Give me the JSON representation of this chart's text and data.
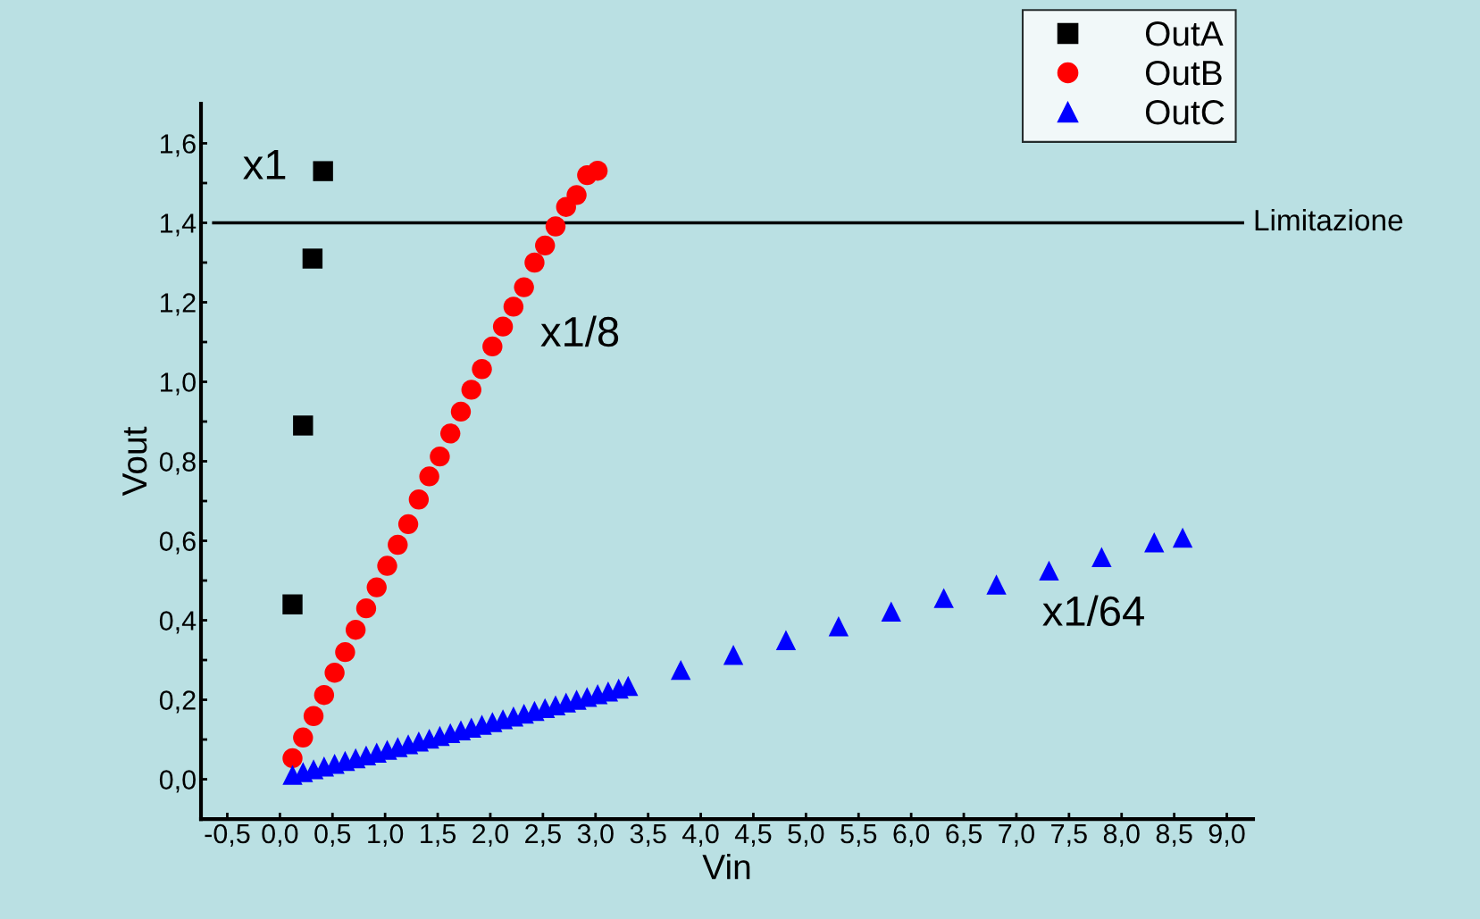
{
  "chart_data": {
    "type": "scatter",
    "xlabel": "Vin",
    "ylabel": "Vout",
    "series": [
      {
        "name": "OutA",
        "color": "#000000",
        "marker": "square",
        "x": [
          0.12,
          0.22,
          0.31,
          0.41
        ],
        "values": [
          0.44,
          0.89,
          1.31,
          1.53
        ]
      },
      {
        "name": "OutB",
        "color": "#ff0000",
        "marker": "circle",
        "x": [
          0.12,
          0.22,
          0.32,
          0.42,
          0.52,
          0.62,
          0.72,
          0.82,
          0.92,
          1.02,
          1.12,
          1.22,
          1.32,
          1.42,
          1.52,
          1.62,
          1.72,
          1.82,
          1.92,
          2.02,
          2.12,
          2.22,
          2.32,
          2.42,
          2.52,
          2.62,
          2.72,
          2.82,
          2.92,
          3.02
        ],
        "values": [
          0.053,
          0.105,
          0.159,
          0.212,
          0.268,
          0.32,
          0.376,
          0.43,
          0.483,
          0.537,
          0.59,
          0.642,
          0.704,
          0.762,
          0.812,
          0.87,
          0.925,
          0.98,
          1.032,
          1.089,
          1.139,
          1.189,
          1.238,
          1.3,
          1.343,
          1.391,
          1.44,
          1.47,
          1.52,
          1.531
        ]
      },
      {
        "name": "OutC",
        "color": "#0000ff",
        "marker": "triangle",
        "x": [
          0.12,
          0.22,
          0.32,
          0.42,
          0.52,
          0.62,
          0.72,
          0.82,
          0.92,
          1.02,
          1.12,
          1.22,
          1.32,
          1.42,
          1.52,
          1.62,
          1.72,
          1.82,
          1.92,
          2.02,
          2.12,
          2.22,
          2.32,
          2.42,
          2.52,
          2.62,
          2.72,
          2.82,
          2.92,
          3.02,
          3.12,
          3.22,
          3.31,
          3.81,
          4.31,
          4.81,
          5.31,
          5.81,
          6.31,
          6.81,
          7.31,
          7.81,
          8.31,
          8.58
        ],
        "values": [
          0.011,
          0.018,
          0.025,
          0.032,
          0.039,
          0.046,
          0.053,
          0.06,
          0.067,
          0.074,
          0.081,
          0.088,
          0.095,
          0.102,
          0.109,
          0.116,
          0.123,
          0.13,
          0.137,
          0.144,
          0.151,
          0.158,
          0.165,
          0.172,
          0.179,
          0.186,
          0.193,
          0.2,
          0.207,
          0.214,
          0.221,
          0.228,
          0.235,
          0.275,
          0.313,
          0.35,
          0.385,
          0.422,
          0.456,
          0.49,
          0.525,
          0.559,
          0.596,
          0.608
        ]
      }
    ],
    "xlim": [
      -0.75,
      9.25
    ],
    "ylim": [
      -0.1,
      1.7
    ],
    "xticks": [
      {
        "value": -0.5,
        "label": "-0,5"
      },
      {
        "value": 0,
        "label": "0,0"
      },
      {
        "value": 0.5,
        "label": "0,5"
      },
      {
        "value": 1,
        "label": "1,0"
      },
      {
        "value": 1.5,
        "label": "1,5"
      },
      {
        "value": 2,
        "label": "2,0"
      },
      {
        "value": 2.5,
        "label": "2,5"
      },
      {
        "value": 3,
        "label": "3,0"
      },
      {
        "value": 3.5,
        "label": "3,5"
      },
      {
        "value": 4,
        "label": "4,0"
      },
      {
        "value": 4.5,
        "label": "4,5"
      },
      {
        "value": 5,
        "label": "5,0"
      },
      {
        "value": 5.5,
        "label": "5,5"
      },
      {
        "value": 6,
        "label": "6,0"
      },
      {
        "value": 6.5,
        "label": "6,5"
      },
      {
        "value": 7,
        "label": "7,0"
      },
      {
        "value": 7.5,
        "label": "7,5"
      },
      {
        "value": 8,
        "label": "8,0"
      },
      {
        "value": 8.5,
        "label": "8,5"
      },
      {
        "value": 9,
        "label": "9,0"
      }
    ],
    "yticks": [
      {
        "value": 0,
        "label": "0,0"
      },
      {
        "value": 0.1,
        "label": null
      },
      {
        "value": 0.2,
        "label": "0,2"
      },
      {
        "value": 0.3,
        "label": null
      },
      {
        "value": 0.4,
        "label": "0,4"
      },
      {
        "value": 0.5,
        "label": null
      },
      {
        "value": 0.6,
        "label": "0,6"
      },
      {
        "value": 0.7,
        "label": null
      },
      {
        "value": 0.8,
        "label": "0,8"
      },
      {
        "value": 0.9,
        "label": null
      },
      {
        "value": 1,
        "label": "1,0"
      },
      {
        "value": 1.1,
        "label": null
      },
      {
        "value": 1.2,
        "label": "1,2"
      },
      {
        "value": 1.3,
        "label": null
      },
      {
        "value": 1.4,
        "label": "1,4"
      },
      {
        "value": 1.5,
        "label": null
      },
      {
        "value": 1.6,
        "label": "1,6"
      }
    ],
    "ref_lines": [
      {
        "axis": "y",
        "value": 1.4,
        "label": "Limitazione",
        "color": "#000000",
        "line_style": "solid"
      }
    ],
    "annotations": [
      "x1",
      "x1/8",
      "x1/64"
    ],
    "grid": false,
    "legend": "top right"
  }
}
